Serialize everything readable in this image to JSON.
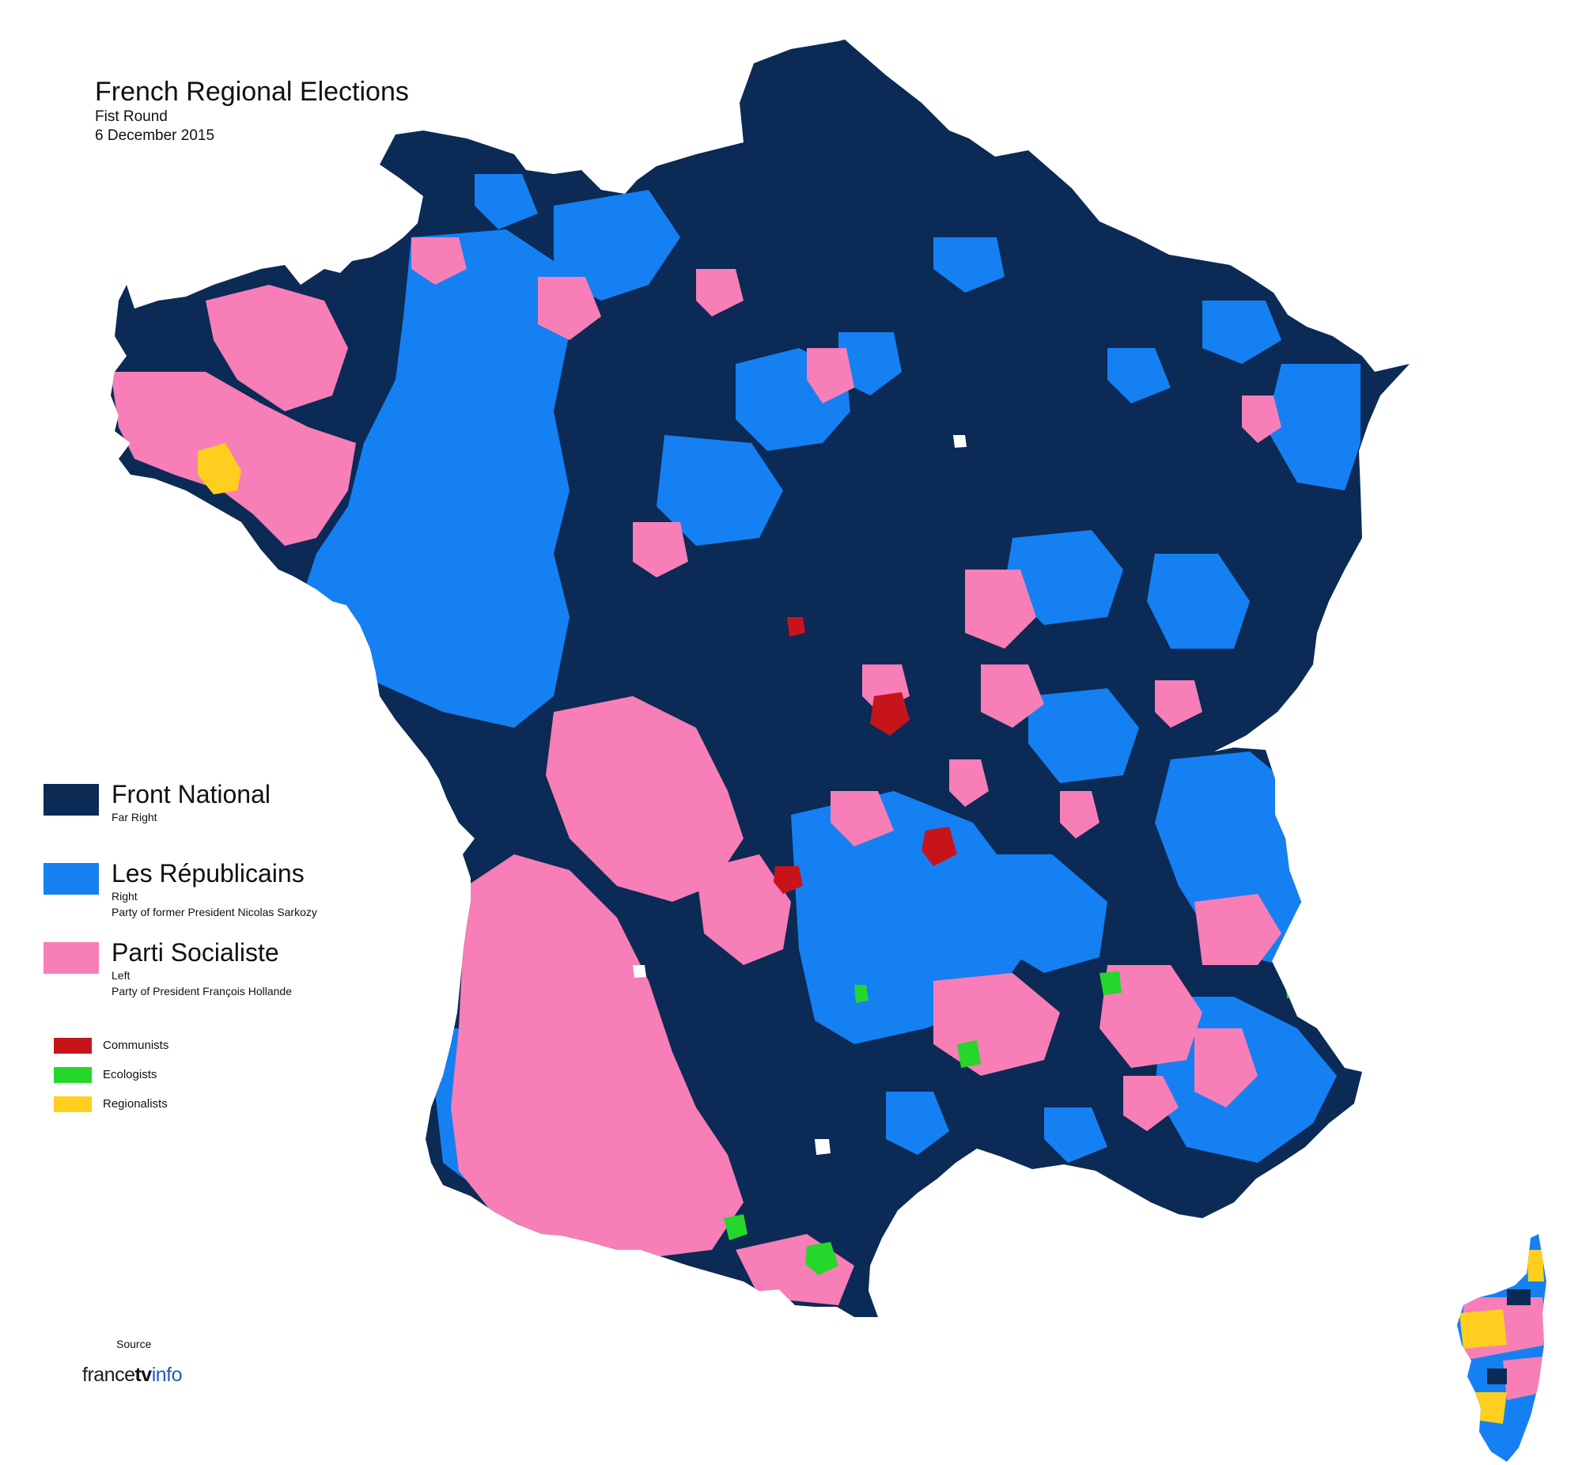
{
  "header": {
    "title": "French Regional Elections",
    "round": "Fist Round",
    "date": "6 December 2015"
  },
  "legend": {
    "main": [
      {
        "name": "Front National",
        "lines": [
          "Far Right"
        ],
        "color": "#0b2a55"
      },
      {
        "name": "Les Républicains",
        "lines": [
          "Right",
          "Party of former President Nicolas Sarkozy"
        ],
        "color": "#1580f2"
      },
      {
        "name": "Parti Socialiste",
        "lines": [
          "Left",
          "Party of President François Hollande"
        ],
        "color": "#f77eb6"
      }
    ],
    "minor": [
      {
        "name": "Communists",
        "color": "#c7141b"
      },
      {
        "name": "Ecologists",
        "color": "#25d62b"
      },
      {
        "name": "Regionalists",
        "color": "#ffce1e"
      }
    ]
  },
  "footer": {
    "source_label": "Source",
    "logo_parts": [
      "france",
      "tv",
      "info"
    ]
  }
}
